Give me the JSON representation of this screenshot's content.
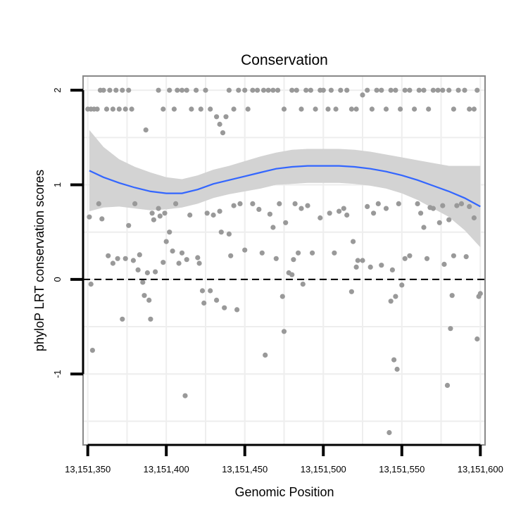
{
  "chart_data": {
    "type": "scatter",
    "title": "Conservation",
    "xlabel": "Genomic Position",
    "ylabel": "phyloP LRT conservation scores",
    "xlim": [
      13151347,
      13151603
    ],
    "ylim": [
      -1.75,
      2.15
    ],
    "grid": true,
    "x_ticks": [
      13151350,
      13151400,
      13151450,
      13151500,
      13151550,
      13151600
    ],
    "x_tick_labels": [
      "13,151,350",
      "13,151,400",
      "13,151,450",
      "13,151,500",
      "13,151,550",
      "13,151,600"
    ],
    "y_ticks": [
      -1,
      0,
      1,
      2
    ],
    "y_tick_labels": [
      "-1",
      "0",
      "1",
      "2"
    ],
    "reference_line": {
      "y": 0,
      "style": "dashed"
    },
    "colors": {
      "points": "#999999",
      "smooth_line": "#3366ff",
      "ribbon": "#d3d3d3",
      "panel_border": "#888888",
      "grid": "#eeeeee"
    },
    "smooth": {
      "x": [
        13151351,
        13151360,
        13151370,
        13151380,
        13151390,
        13151400,
        13151410,
        13151420,
        13151430,
        13151440,
        13151450,
        13151460,
        13151470,
        13151480,
        13151490,
        13151500,
        13151510,
        13151520,
        13151530,
        13151540,
        13151550,
        13151560,
        13151570,
        13151580,
        13151590,
        13151600
      ],
      "y": [
        1.15,
        1.08,
        1.02,
        0.97,
        0.93,
        0.91,
        0.91,
        0.95,
        1.01,
        1.05,
        1.09,
        1.13,
        1.17,
        1.19,
        1.2,
        1.2,
        1.2,
        1.19,
        1.17,
        1.14,
        1.1,
        1.05,
        0.99,
        0.93,
        0.86,
        0.77
      ],
      "upper": [
        1.58,
        1.4,
        1.27,
        1.19,
        1.13,
        1.08,
        1.06,
        1.1,
        1.16,
        1.2,
        1.25,
        1.3,
        1.34,
        1.37,
        1.38,
        1.38,
        1.38,
        1.37,
        1.35,
        1.32,
        1.29,
        1.26,
        1.23,
        1.2,
        1.2,
        1.2
      ],
      "lower": [
        0.72,
        0.76,
        0.77,
        0.75,
        0.73,
        0.74,
        0.76,
        0.8,
        0.86,
        0.9,
        0.93,
        0.96,
        1.0,
        1.01,
        1.02,
        1.02,
        1.02,
        1.01,
        0.99,
        0.96,
        0.91,
        0.84,
        0.75,
        0.66,
        0.52,
        0.34
      ]
    },
    "points": [
      [
        13151350,
        1.8
      ],
      [
        13151352,
        1.8
      ],
      [
        13151354,
        1.8
      ],
      [
        13151356,
        1.8
      ],
      [
        13151358,
        2.0
      ],
      [
        13151360,
        2.0
      ],
      [
        13151362,
        1.8
      ],
      [
        13151364,
        2.0
      ],
      [
        13151366,
        1.8
      ],
      [
        13151368,
        2.0
      ],
      [
        13151370,
        1.8
      ],
      [
        13151372,
        2.0
      ],
      [
        13151374,
        1.8
      ],
      [
        13151376,
        2.0
      ],
      [
        13151378,
        1.8
      ],
      [
        13151387,
        1.58
      ],
      [
        13151395,
        2.0
      ],
      [
        13151398,
        1.8
      ],
      [
        13151402,
        2.0
      ],
      [
        13151405,
        1.8
      ],
      [
        13151407,
        2.0
      ],
      [
        13151410,
        2.0
      ],
      [
        13151413,
        2.0
      ],
      [
        13151416,
        1.8
      ],
      [
        13151419,
        2.0
      ],
      [
        13151422,
        1.8
      ],
      [
        13151425,
        2.0
      ],
      [
        13151428,
        1.8
      ],
      [
        13151432,
        1.72
      ],
      [
        13151434,
        1.64
      ],
      [
        13151436,
        1.55
      ],
      [
        13151438,
        1.72
      ],
      [
        13151440,
        2.0
      ],
      [
        13151443,
        1.8
      ],
      [
        13151446,
        2.0
      ],
      [
        13151450,
        2.0
      ],
      [
        13151452,
        1.8
      ],
      [
        13151455,
        2.0
      ],
      [
        13151458,
        2.0
      ],
      [
        13151462,
        2.0
      ],
      [
        13151465,
        2.0
      ],
      [
        13151468,
        2.0
      ],
      [
        13151471,
        2.0
      ],
      [
        13151475,
        1.8
      ],
      [
        13151480,
        2.0
      ],
      [
        13151483,
        2.0
      ],
      [
        13151486,
        1.8
      ],
      [
        13151489,
        2.0
      ],
      [
        13151492,
        2.0
      ],
      [
        13151495,
        1.8
      ],
      [
        13151498,
        2.0
      ],
      [
        13151500,
        2.0
      ],
      [
        13151503,
        1.8
      ],
      [
        13151505,
        2.0
      ],
      [
        13151508,
        1.8
      ],
      [
        13151511,
        2.0
      ],
      [
        13151515,
        2.0
      ],
      [
        13151518,
        1.8
      ],
      [
        13151521,
        1.8
      ],
      [
        13151525,
        1.95
      ],
      [
        13151528,
        2.0
      ],
      [
        13151531,
        1.8
      ],
      [
        13151534,
        2.0
      ],
      [
        13151537,
        2.0
      ],
      [
        13151540,
        1.8
      ],
      [
        13151543,
        2.0
      ],
      [
        13151546,
        2.0
      ],
      [
        13151549,
        1.8
      ],
      [
        13151552,
        2.0
      ],
      [
        13151555,
        2.0
      ],
      [
        13151558,
        1.8
      ],
      [
        13151561,
        2.0
      ],
      [
        13151564,
        2.0
      ],
      [
        13151567,
        1.8
      ],
      [
        13151570,
        2.0
      ],
      [
        13151573,
        2.0
      ],
      [
        13151576,
        2.0
      ],
      [
        13151580,
        2.0
      ],
      [
        13151583,
        1.8
      ],
      [
        13151586,
        2.0
      ],
      [
        13151590,
        2.0
      ],
      [
        13151593,
        1.8
      ],
      [
        13151596,
        1.8
      ],
      [
        13151598,
        2.0
      ],
      [
        13151351,
        0.66
      ],
      [
        13151352,
        -0.05
      ],
      [
        13151353,
        -0.75
      ],
      [
        13151357,
        0.8
      ],
      [
        13151359,
        0.64
      ],
      [
        13151363,
        0.25
      ],
      [
        13151366,
        0.17
      ],
      [
        13151369,
        0.22
      ],
      [
        13151372,
        -0.42
      ],
      [
        13151374,
        0.22
      ],
      [
        13151376,
        0.57
      ],
      [
        13151379,
        0.2
      ],
      [
        13151380,
        0.8
      ],
      [
        13151382,
        0.1
      ],
      [
        13151383,
        0.26
      ],
      [
        13151385,
        -0.03
      ],
      [
        13151386,
        -0.17
      ],
      [
        13151388,
        0.07
      ],
      [
        13151389,
        -0.22
      ],
      [
        13151390,
        -0.42
      ],
      [
        13151391,
        0.7
      ],
      [
        13151392,
        0.63
      ],
      [
        13151393,
        0.08
      ],
      [
        13151395,
        0.75
      ],
      [
        13151396,
        0.67
      ],
      [
        13151398,
        0.18
      ],
      [
        13151399,
        0.7
      ],
      [
        13151400,
        0.4
      ],
      [
        13151402,
        0.5
      ],
      [
        13151404,
        0.3
      ],
      [
        13151406,
        0.8
      ],
      [
        13151408,
        0.17
      ],
      [
        13151410,
        0.28
      ],
      [
        13151412,
        -1.23
      ],
      [
        13151413,
        0.21
      ],
      [
        13151415,
        0.68
      ],
      [
        13151420,
        0.23
      ],
      [
        13151421,
        0.17
      ],
      [
        13151423,
        -0.12
      ],
      [
        13151424,
        -0.25
      ],
      [
        13151426,
        0.7
      ],
      [
        13151428,
        -0.12
      ],
      [
        13151430,
        0.68
      ],
      [
        13151432,
        -0.22
      ],
      [
        13151434,
        0.72
      ],
      [
        13151435,
        0.5
      ],
      [
        13151437,
        -0.3
      ],
      [
        13151440,
        0.48
      ],
      [
        13151441,
        0.25
      ],
      [
        13151443,
        0.78
      ],
      [
        13151445,
        -0.32
      ],
      [
        13151447,
        0.8
      ],
      [
        13151450,
        0.31
      ],
      [
        13151455,
        0.8
      ],
      [
        13151459,
        0.74
      ],
      [
        13151461,
        0.28
      ],
      [
        13151463,
        -0.8
      ],
      [
        13151466,
        0.69
      ],
      [
        13151468,
        0.55
      ],
      [
        13151470,
        0.22
      ],
      [
        13151472,
        0.8
      ],
      [
        13151474,
        -0.18
      ],
      [
        13151475,
        -0.55
      ],
      [
        13151476,
        0.6
      ],
      [
        13151478,
        0.07
      ],
      [
        13151480,
        0.05
      ],
      [
        13151481,
        0.21
      ],
      [
        13151482,
        0.8
      ],
      [
        13151484,
        0.28
      ],
      [
        13151486,
        0.75
      ],
      [
        13151487,
        -0.05
      ],
      [
        13151490,
        0.78
      ],
      [
        13151493,
        0.28
      ],
      [
        13151498,
        0.65
      ],
      [
        13151504,
        0.7
      ],
      [
        13151507,
        0.28
      ],
      [
        13151510,
        0.72
      ],
      [
        13151513,
        0.75
      ],
      [
        13151515,
        0.68
      ],
      [
        13151518,
        -0.13
      ],
      [
        13151519,
        0.4
      ],
      [
        13151521,
        0.13
      ],
      [
        13151522,
        0.2
      ],
      [
        13151525,
        0.2
      ],
      [
        13151528,
        0.77
      ],
      [
        13151530,
        0.13
      ],
      [
        13151532,
        0.7
      ],
      [
        13151535,
        0.8
      ],
      [
        13151537,
        0.15
      ],
      [
        13151540,
        0.75
      ],
      [
        13151542,
        -1.62
      ],
      [
        13151543,
        -0.23
      ],
      [
        13151544,
        0.1
      ],
      [
        13151545,
        -0.85
      ],
      [
        13151546,
        -0.18
      ],
      [
        13151547,
        -0.95
      ],
      [
        13151548,
        0.8
      ],
      [
        13151550,
        -0.06
      ],
      [
        13151552,
        0.22
      ],
      [
        13151555,
        0.25
      ],
      [
        13151560,
        0.8
      ],
      [
        13151562,
        0.7
      ],
      [
        13151564,
        0.55
      ],
      [
        13151566,
        0.22
      ],
      [
        13151568,
        0.76
      ],
      [
        13151570,
        0.75
      ],
      [
        13151574,
        0.6
      ],
      [
        13151576,
        0.78
      ],
      [
        13151577,
        0.16
      ],
      [
        13151579,
        -1.12
      ],
      [
        13151580,
        0.63
      ],
      [
        13151581,
        -0.52
      ],
      [
        13151582,
        -0.17
      ],
      [
        13151583,
        0.25
      ],
      [
        13151585,
        0.78
      ],
      [
        13151588,
        0.8
      ],
      [
        13151591,
        0.24
      ],
      [
        13151593,
        0.77
      ],
      [
        13151596,
        0.65
      ],
      [
        13151598,
        -0.63
      ],
      [
        13151599,
        -0.18
      ],
      [
        13151600,
        -0.15
      ]
    ]
  }
}
